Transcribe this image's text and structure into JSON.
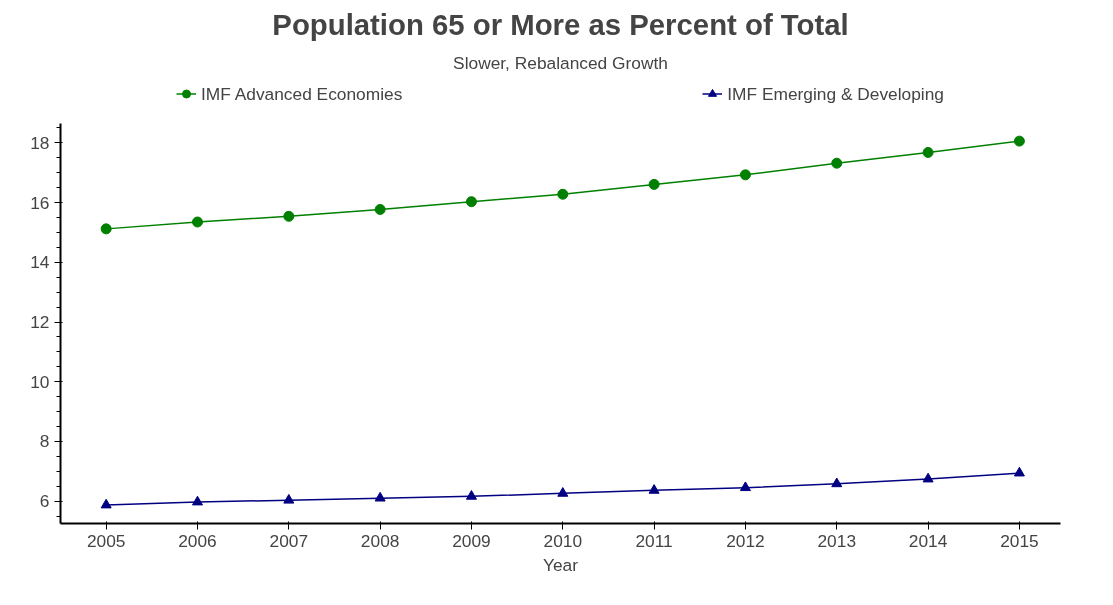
{
  "chart_data": {
    "type": "line",
    "title": "Population 65 or More as Percent of Total",
    "subtitle": "Slower, Rebalanced Growth",
    "xlabel": "Year",
    "x": [
      2005,
      2006,
      2007,
      2008,
      2009,
      2010,
      2011,
      2012,
      2013,
      2014,
      2015
    ],
    "series": [
      {
        "name": "IMF Advanced Economies",
        "color": "#008000",
        "marker": "circle",
        "values": [
          15.12,
          15.35,
          15.54,
          15.77,
          16.03,
          16.28,
          16.61,
          16.93,
          17.32,
          17.68,
          18.06
        ]
      },
      {
        "name": "IMF Emerging & Developing",
        "color": "#000080",
        "marker": "triangle",
        "values": [
          5.87,
          5.97,
          6.03,
          6.1,
          6.16,
          6.26,
          6.36,
          6.45,
          6.58,
          6.74,
          6.94
        ]
      }
    ],
    "xlim": [
      2004.5,
      2015.45
    ],
    "ylim": [
      5.25,
      18.65
    ],
    "xticks": [
      2005,
      2006,
      2007,
      2008,
      2009,
      2010,
      2011,
      2012,
      2013,
      2014,
      2015
    ],
    "yticks": [
      6,
      8,
      10,
      12,
      14,
      16,
      18
    ],
    "grid": false,
    "legend": "top",
    "line_style": "solid"
  }
}
